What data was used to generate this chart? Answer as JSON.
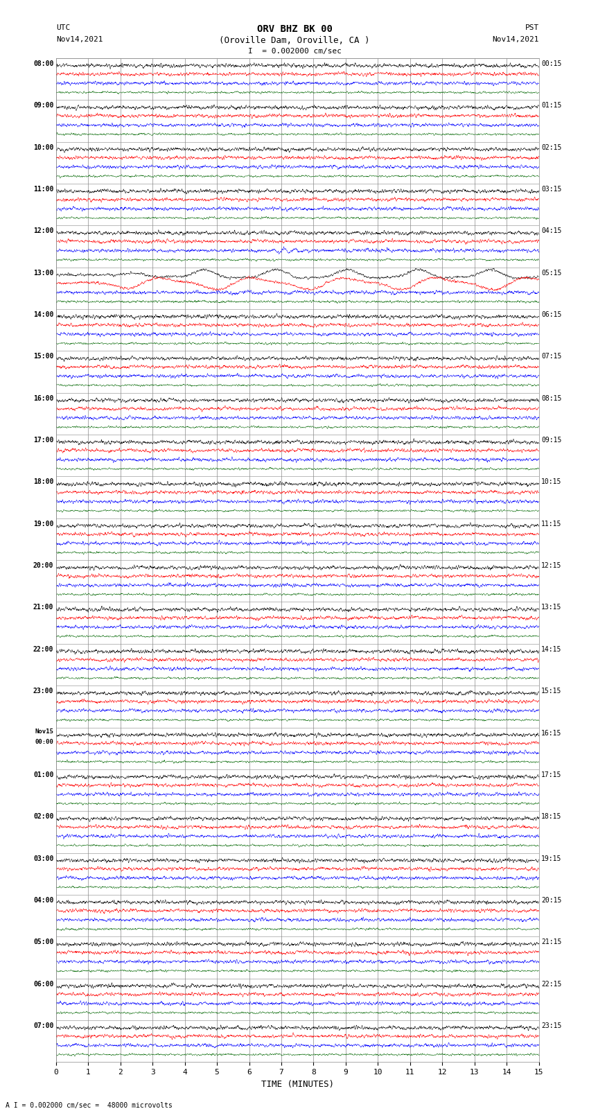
{
  "title_line1": "ORV BHZ BK 00",
  "title_line2": "(Oroville Dam, Oroville, CA )",
  "scale_label": "I  = 0.002000 cm/sec",
  "bottom_label": "A I = 0.002000 cm/sec =  48000 microvolts",
  "utc_label": "UTC",
  "utc_date": "Nov14,2021",
  "pst_label": "PST",
  "pst_date": "Nov14,2021",
  "xlabel": "TIME (MINUTES)",
  "utc_times": [
    "08:00",
    "09:00",
    "10:00",
    "11:00",
    "12:00",
    "13:00",
    "14:00",
    "15:00",
    "16:00",
    "17:00",
    "18:00",
    "19:00",
    "20:00",
    "21:00",
    "22:00",
    "23:00",
    "Nov15\n00:00",
    "01:00",
    "02:00",
    "03:00",
    "04:00",
    "05:00",
    "06:00",
    "07:00"
  ],
  "pst_times": [
    "00:15",
    "01:15",
    "02:15",
    "03:15",
    "04:15",
    "05:15",
    "06:15",
    "07:15",
    "08:15",
    "09:15",
    "10:15",
    "11:15",
    "12:15",
    "13:15",
    "14:15",
    "15:15",
    "16:15",
    "17:15",
    "18:15",
    "19:15",
    "20:15",
    "21:15",
    "22:15",
    "23:15"
  ],
  "n_rows": 24,
  "n_traces": 4,
  "trace_colors": [
    "black",
    "red",
    "blue",
    "#006600"
  ],
  "xmin": 0,
  "xmax": 15,
  "bg_color": "white",
  "grid_color": "#888888",
  "figwidth": 8.5,
  "figheight": 16.13,
  "dpi": 100
}
